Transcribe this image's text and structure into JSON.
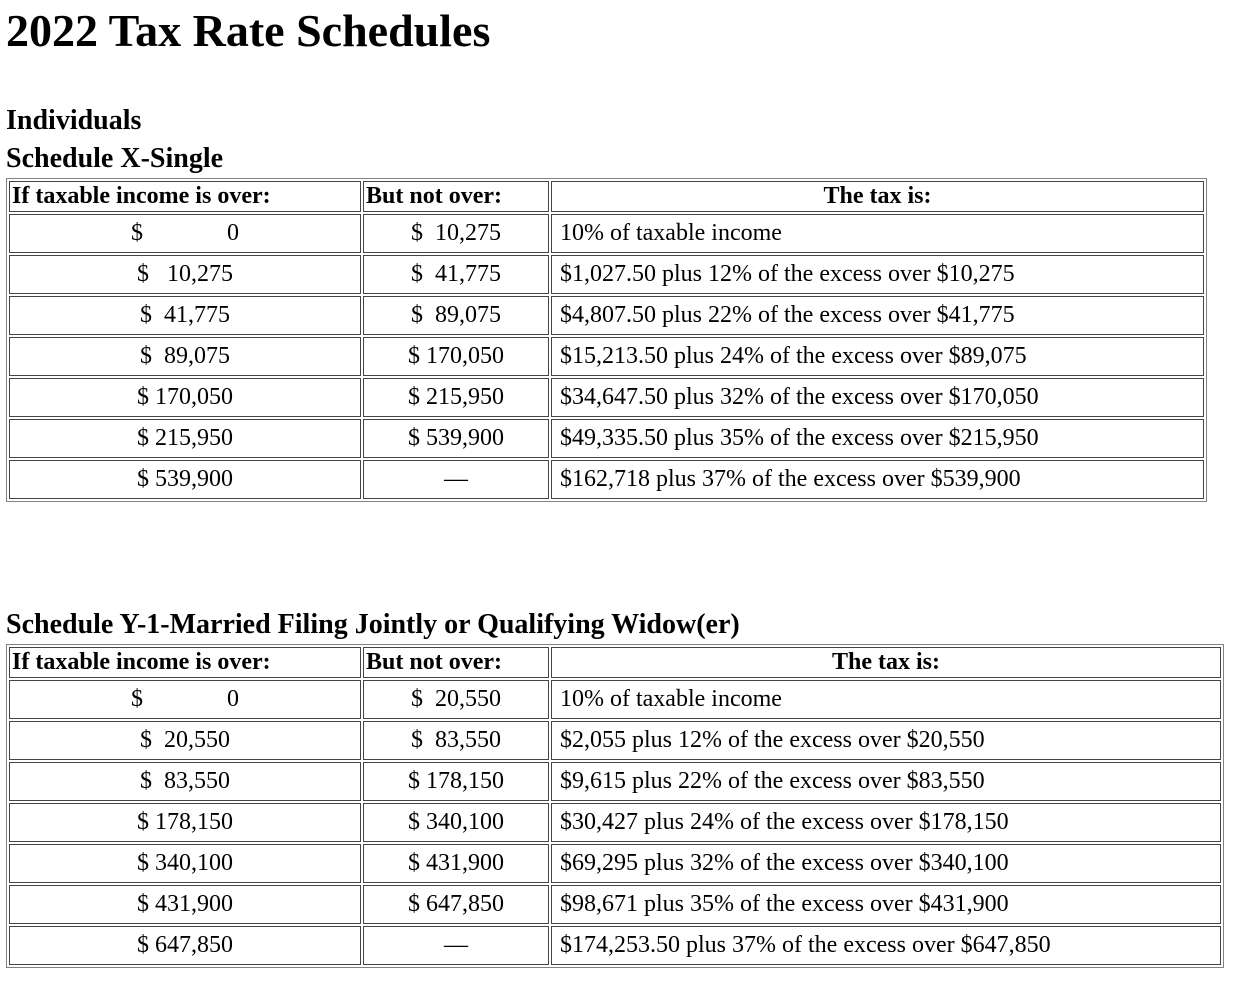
{
  "page_title": "2022 Tax Rate Schedules",
  "columns": {
    "over": "If taxable income is over:",
    "not_over": "But not over:",
    "tax": "The tax is:"
  },
  "schedule_x": {
    "group_heading": "Individuals",
    "heading": "Schedule X-Single",
    "rows": [
      {
        "over": "$              0",
        "not_over": "$  10,275",
        "tax": "10% of taxable income"
      },
      {
        "over": "$   10,275",
        "not_over": "$  41,775",
        "tax": "$1,027.50 plus 12% of the excess over $10,275"
      },
      {
        "over": "$  41,775",
        "not_over": "$  89,075",
        "tax": "$4,807.50 plus 22% of the excess over $41,775"
      },
      {
        "over": "$  89,075",
        "not_over": "$ 170,050",
        "tax": "$15,213.50 plus 24% of the excess over $89,075"
      },
      {
        "over": "$ 170,050",
        "not_over": "$ 215,950",
        "tax": "$34,647.50 plus 32% of the excess over $170,050"
      },
      {
        "over": "$ 215,950",
        "not_over": "$ 539,900",
        "tax": "$49,335.50 plus 35% of the excess over $215,950"
      },
      {
        "over": "$ 539,900",
        "not_over": "—",
        "tax": "$162,718 plus 37% of the excess over $539,900"
      }
    ]
  },
  "schedule_y1": {
    "heading": "Schedule Y-1-Married Filing Jointly or Qualifying Widow(er)",
    "rows": [
      {
        "over": "$              0",
        "not_over": "$  20,550",
        "tax": "10% of taxable income"
      },
      {
        "over": "$  20,550",
        "not_over": "$  83,550",
        "tax": "$2,055 plus 12% of the excess over $20,550"
      },
      {
        "over": "$  83,550",
        "not_over": "$ 178,150",
        "tax": "$9,615 plus 22% of the excess over $83,550"
      },
      {
        "over": "$ 178,150",
        "not_over": "$ 340,100",
        "tax": "$30,427 plus 24% of the excess over $178,150"
      },
      {
        "over": "$ 340,100",
        "not_over": "$ 431,900",
        "tax": "$69,295 plus 32% of the excess over $340,100"
      },
      {
        "over": "$ 431,900",
        "not_over": "$ 647,850",
        "tax": "$98,671 plus 35% of the excess over $431,900"
      },
      {
        "over": "$ 647,850",
        "not_over": "—",
        "tax": "$174,253.50 plus 37% of the excess over $647,850"
      }
    ]
  }
}
